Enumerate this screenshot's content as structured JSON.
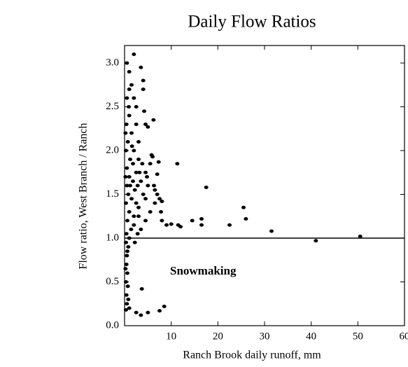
{
  "chart_data": {
    "type": "scatter",
    "title": "Daily Flow Ratios",
    "x_label": "Ranch Brook daily runoff, mm",
    "y_label": "Flow ratio, West Branch / Ranch",
    "annotation": "Snowmaking",
    "reference_line": 1,
    "color": "#000000",
    "xlim": [
      0,
      60
    ],
    "ylim": [
      0,
      3.2
    ],
    "xticks": [
      10,
      20,
      30,
      40,
      50,
      60
    ],
    "yticks": [
      {
        "value": 0,
        "label": "0.0"
      },
      {
        "value": 0.5,
        "label": "0.5"
      },
      {
        "value": 1,
        "label": "1.0"
      },
      {
        "value": 1.5,
        "label": "1.5"
      },
      {
        "value": 2,
        "label": "2.0"
      },
      {
        "value": 2.5,
        "label": "2.5"
      },
      {
        "value": 3,
        "label": "3.0"
      }
    ],
    "x": [
      50.5,
      41,
      31.5,
      26,
      25.5,
      22.5,
      17.5,
      16.5,
      16.5,
      14.5,
      12,
      11.5,
      11.3,
      10,
      9,
      8,
      7.8,
      8,
      7.5,
      7.3,
      7,
      7,
      6.5,
      6.3,
      6,
      5.8,
      6.2,
      5,
      4.5,
      4.2,
      4,
      4,
      3.5,
      2,
      0.5,
      8.5,
      7.5,
      5,
      3.5,
      2.5,
      3.7,
      4.5,
      3.5,
      4,
      4.5,
      5.5,
      5,
      4.5,
      3,
      3,
      3,
      2.5,
      2.5,
      2,
      1.5,
      1,
      0.5,
      1,
      1.5,
      2,
      1.2,
      0.5,
      1,
      1.8,
      2.2,
      0.8,
      1.5,
      0.3,
      1,
      2,
      0.6,
      1.4,
      0.4,
      2.8,
      0.3,
      0.8,
      0.5,
      0.4,
      0.6,
      0.3,
      0.7,
      0.4,
      0.8,
      0.5,
      1,
      0.3,
      0.6,
      0.2,
      1,
      2.5,
      3.5,
      3.8,
      2.5,
      1.8,
      0.7,
      0.4,
      0.9,
      0.3,
      1.2,
      0.5,
      2,
      3,
      1,
      2.8,
      4.8,
      0.2,
      0.2,
      1.6,
      3.2,
      5.5,
      6.5,
      2.2
    ],
    "values": [
      1.02,
      0.97,
      1.08,
      1.22,
      1.35,
      1.15,
      1.58,
      1.22,
      1.15,
      1.2,
      1.13,
      1.15,
      1.85,
      1.16,
      1.15,
      1.2,
      1.3,
      1.42,
      1.45,
      1.87,
      1.73,
      1.5,
      1.55,
      1.6,
      1.93,
      1.95,
      2.35,
      2.27,
      2.3,
      2.45,
      2.7,
      2.8,
      2.95,
      3.1,
      3.0,
      0.22,
      0.17,
      0.15,
      0.12,
      0.15,
      0.42,
      1.2,
      1.1,
      1.5,
      1.75,
      1.85,
      1.6,
      1.45,
      1.35,
      1.9,
      2.1,
      2.3,
      2.5,
      2.6,
      2.75,
      2.7,
      2.6,
      2.4,
      2.2,
      2.0,
      1.9,
      1.8,
      1.7,
      1.65,
      1.55,
      1.5,
      1.45,
      1.4,
      1.3,
      1.25,
      1.2,
      1.1,
      1.05,
      1.05,
      0.95,
      0.9,
      0.8,
      0.7,
      0.6,
      0.5,
      0.45,
      0.35,
      0.3,
      0.25,
      0.2,
      0.18,
      0.85,
      0.65,
      1.0,
      1.75,
      1.65,
      1.85,
      1.4,
      1.85,
      2.1,
      2.3,
      2.5,
      2.0,
      1.6,
      1.6,
      1.15,
      1.25,
      2.9,
      1.6,
      1.7,
      1.7,
      2.2,
      2.05,
      1.75,
      1.3,
      1.4,
      0.95
    ]
  }
}
